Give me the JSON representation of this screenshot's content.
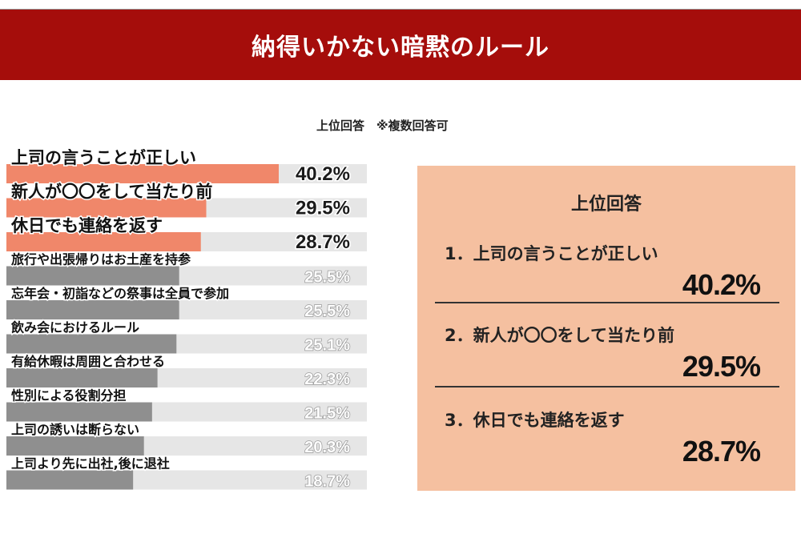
{
  "header": {
    "title": "納得いかない暗黙のルール"
  },
  "subtitle": "上位回答　※複数回答可",
  "chart_data": {
    "type": "bar",
    "orientation": "horizontal",
    "unit": "%",
    "xlim": [
      0,
      100
    ],
    "categories": [
      "上司の言うことが正しい",
      "新人が〇〇をして当たり前",
      "休日でも連絡を返す",
      "旅行や出張帰りはお土産を持参",
      "忘年会・初詣などの祭事は全員で参加",
      "飲み会におけるルール",
      "有給休暇は周囲と合わせる",
      "性別による役割分担",
      "上司の誘いは断らない",
      "上司より先に出社,後に退社"
    ],
    "values": [
      40.2,
      29.5,
      28.7,
      25.5,
      25.5,
      25.1,
      22.3,
      21.5,
      20.3,
      18.7
    ],
    "value_labels": [
      "40.2%",
      "29.5%",
      "28.7%",
      "25.5%",
      "25.5%",
      "25.1%",
      "22.3%",
      "21.5%",
      "20.3%",
      "18.7%"
    ],
    "highlight_count": 3,
    "colors": {
      "highlight": "#f0876a",
      "normal": "#8f8f8f",
      "track": "#e6e6e6"
    }
  },
  "panel": {
    "title": "上位回答",
    "items": [
      {
        "label": "1．上司の言うことが正しい",
        "value": "40.2%"
      },
      {
        "label": "2．新人が〇〇をして当たり前",
        "value": "29.5%"
      },
      {
        "label": "3．休日でも連絡を返す",
        "value": "28.7%"
      }
    ]
  },
  "colors": {
    "header_bg": "#a50d0b",
    "panel_bg": "#f5c0a0"
  }
}
